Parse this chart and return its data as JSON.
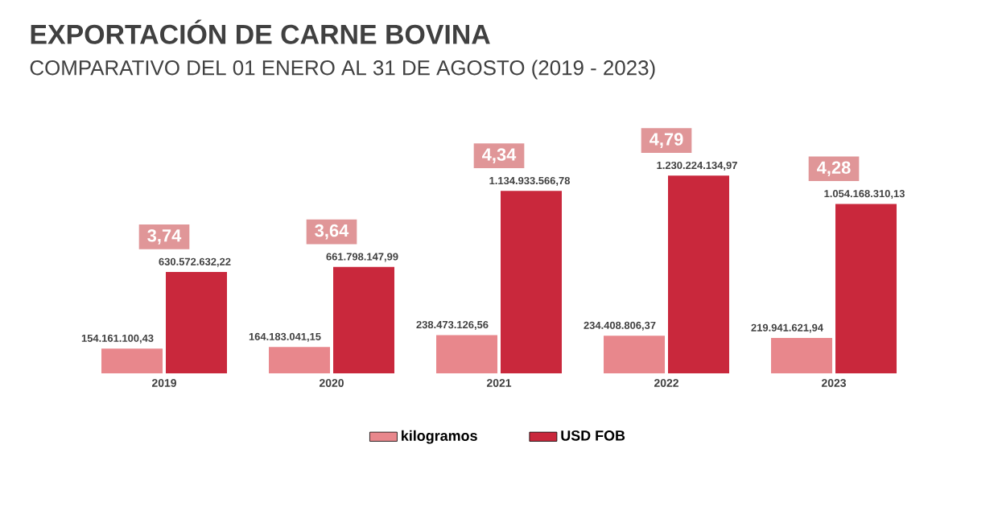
{
  "chart_data": {
    "type": "bar",
    "title": "EXPORTACIÓN DE CARNE BOVINA",
    "subtitle": "COMPARATIVO DEL 01 ENERO AL 31 DE AGOSTO (2019 - 2023)",
    "categories": [
      "2019",
      "2020",
      "2021",
      "2022",
      "2023"
    ],
    "series": [
      {
        "name": "kilogramos",
        "color": "#e8878c",
        "values": [
          154161100.43,
          164183041.15,
          238473126.56,
          234408806.37,
          219941621.94
        ],
        "value_labels": [
          "154.161.100,43",
          "164.183.041,15",
          "238.473.126,56",
          "234.408.806,37",
          "219.941.621,94"
        ]
      },
      {
        "name": "USD FOB",
        "color": "#c9283c",
        "values": [
          630572632.22,
          661798147.99,
          1134933566.78,
          1230224134.97,
          1054168310.13
        ],
        "value_labels": [
          "630.572.632,22",
          "661.798.147,99",
          "1.134.933.566,78",
          "1.230.224.134,97",
          "1.054.168.310,13"
        ]
      }
    ],
    "annotations": [
      "3,74",
      "3,64",
      "4,34",
      "4,79",
      "4,28"
    ],
    "tick_labels": "x",
    "legend": "bottom"
  }
}
